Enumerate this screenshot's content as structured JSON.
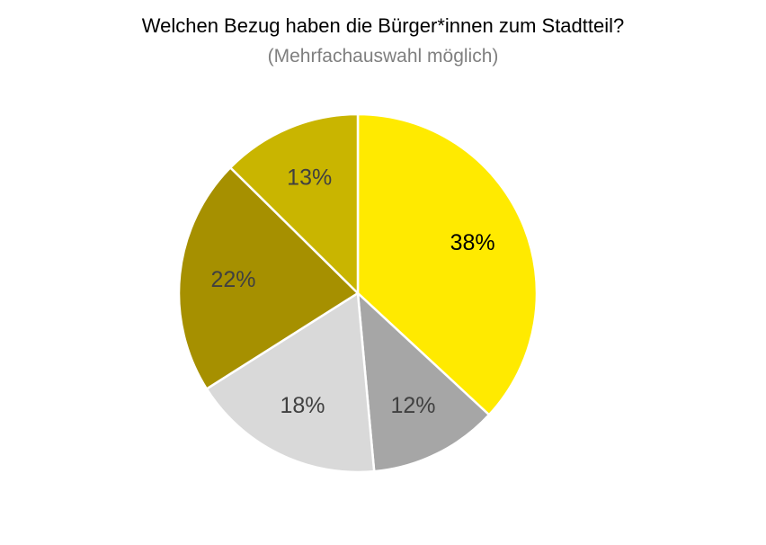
{
  "chart_data": {
    "type": "pie",
    "title": "Welchen Bezug haben die Bürger*innen zum Stadtteil?",
    "subtitle": "(Mehrfachauswahl möglich)",
    "values": [
      38,
      12,
      18,
      22,
      13
    ],
    "labels": [
      "38%",
      "12%",
      "18%",
      "22%",
      "13%"
    ],
    "colors": [
      "#ffea00",
      "#a6a6a6",
      "#d9d9d9",
      "#a69000",
      "#c9b500"
    ],
    "label_colors": [
      "#000000",
      "#404040",
      "#404040",
      "#404040",
      "#404040"
    ],
    "start_angle_deg": 0,
    "direction": "clockwise",
    "legend": "none"
  }
}
